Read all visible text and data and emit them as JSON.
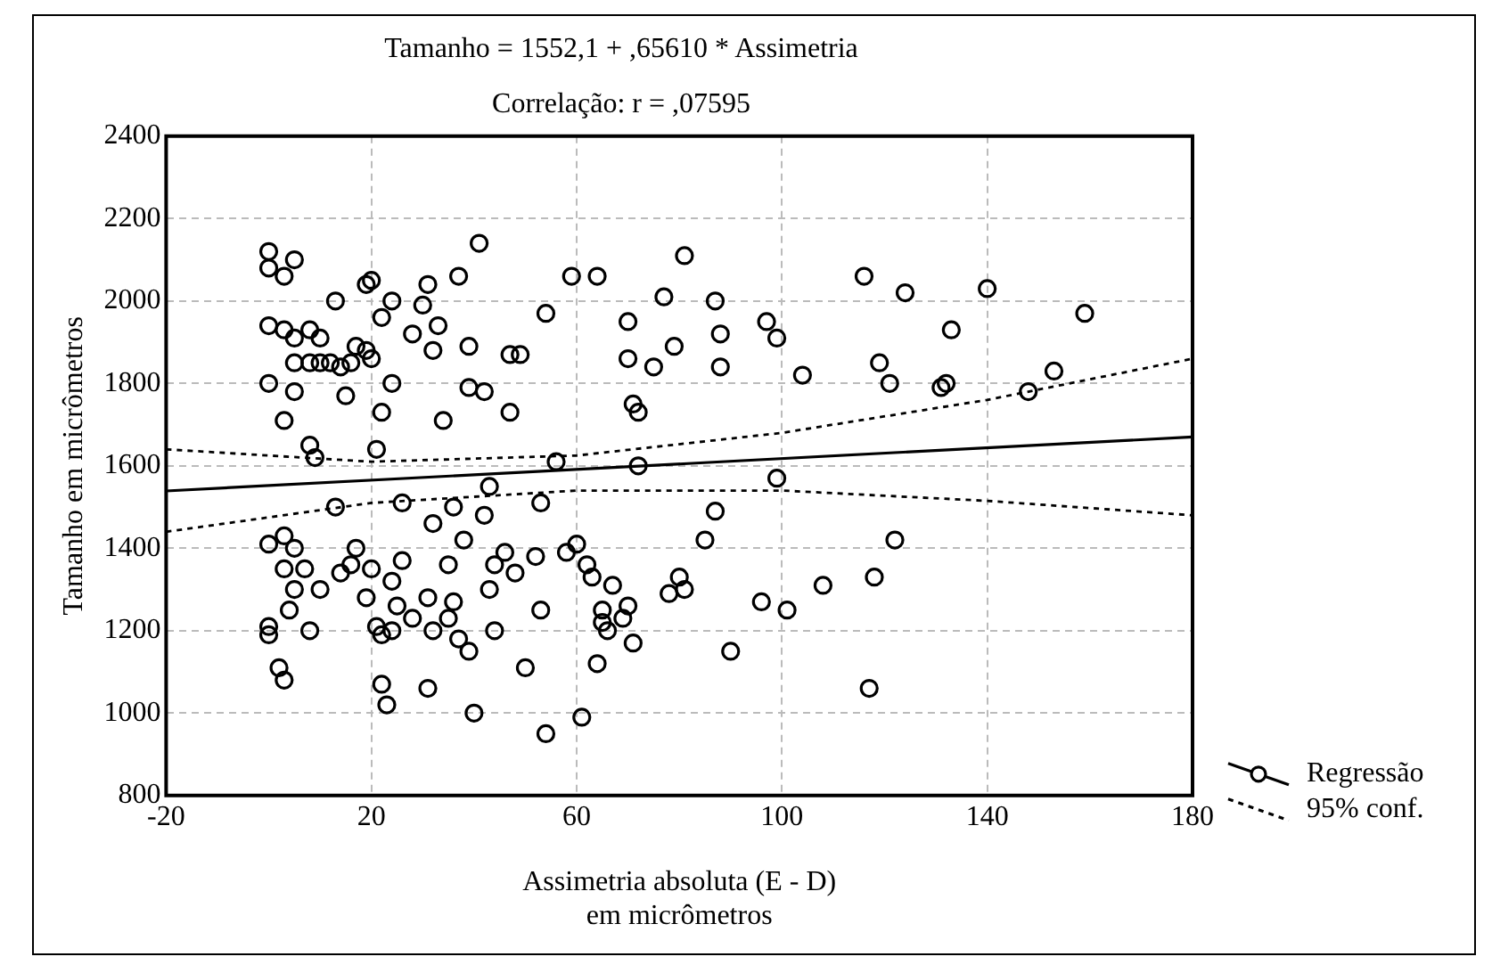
{
  "chart_data": {
    "type": "scatter",
    "title": "Tamanho = 1552,1 + ,65610 * Assimetria",
    "subtitle": "Correlação: r = ,07595",
    "xlabel": "Assimetria absoluta (E - D)\nem micrômetros",
    "ylabel": "Tamanho em micrômetros",
    "xlim": [
      -20,
      180
    ],
    "xticks": [
      -20,
      20,
      60,
      100,
      140,
      180
    ],
    "ylim": [
      800,
      2400
    ],
    "yticks": [
      800,
      1000,
      1200,
      1400,
      1600,
      1800,
      2000,
      2200,
      2400
    ],
    "grid": true,
    "legend": "right",
    "series": [
      {
        "color": "#000000",
        "marker": "circle",
        "x": [
          0,
          0,
          3,
          5,
          0,
          3,
          5,
          8,
          10,
          0,
          3,
          5,
          5,
          8,
          10,
          12,
          8,
          9,
          0,
          3,
          5,
          3,
          7,
          5,
          10,
          0,
          0,
          2,
          3,
          8,
          4,
          13,
          14,
          15,
          16,
          17,
          19,
          20,
          19,
          20,
          13,
          14,
          16,
          17,
          19,
          20,
          21,
          22,
          22,
          24,
          24,
          21,
          22,
          23,
          22,
          24,
          25,
          24,
          26,
          26,
          28,
          28,
          30,
          31,
          32,
          31,
          32,
          32,
          31,
          33,
          34,
          35,
          35,
          36,
          36,
          37,
          37,
          38,
          39,
          39,
          39,
          40,
          41,
          42,
          42,
          43,
          43,
          44,
          44,
          46,
          47,
          47,
          48,
          49,
          50,
          52,
          54,
          53,
          53,
          54,
          56,
          58,
          59,
          60,
          61,
          62,
          63,
          64,
          64,
          65,
          65,
          66,
          67,
          69,
          70,
          70,
          70,
          71,
          72,
          72,
          71,
          75,
          77,
          79,
          78,
          80,
          81,
          81,
          85,
          87,
          87,
          88,
          88,
          90,
          96,
          97,
          99,
          99,
          101,
          104,
          108,
          116,
          117,
          118,
          119,
          121,
          122,
          124,
          131,
          132,
          133,
          140,
          148,
          153,
          159
        ],
        "values": [
          2120,
          2080,
          2060,
          2100,
          1940,
          1930,
          1910,
          1930,
          1910,
          1800,
          1710,
          1780,
          1850,
          1850,
          1850,
          1850,
          1650,
          1620,
          1410,
          1430,
          1400,
          1350,
          1350,
          1300,
          1300,
          1210,
          1190,
          1110,
          1080,
          1200,
          1250,
          2000,
          1840,
          1770,
          1850,
          1890,
          2040,
          2050,
          1880,
          1860,
          1500,
          1340,
          1360,
          1400,
          1280,
          1350,
          1640,
          1730,
          1960,
          2000,
          1800,
          1210,
          1070,
          1020,
          1190,
          1200,
          1260,
          1320,
          1510,
          1370,
          1920,
          1230,
          1990,
          2040,
          1880,
          1280,
          1460,
          1200,
          1060,
          1940,
          1710,
          1360,
          1230,
          1500,
          1270,
          2060,
          1180,
          1420,
          1890,
          1150,
          1790,
          1000,
          2140,
          1780,
          1480,
          1550,
          1300,
          1200,
          1360,
          1390,
          1870,
          1730,
          1340,
          1870,
          1110,
          1380,
          1970,
          1510,
          1250,
          950,
          1610,
          1390,
          2060,
          1410,
          990,
          1360,
          1330,
          2060,
          1120,
          1220,
          1250,
          1200,
          1310,
          1230,
          1950,
          1860,
          1260,
          1750,
          1730,
          1600,
          1170,
          1840,
          2010,
          1890,
          1290,
          1330,
          1300,
          2110,
          1420,
          1490,
          2000,
          1920,
          1840,
          1150,
          1270,
          1950,
          1910,
          1570,
          1250,
          1820,
          1310,
          2060,
          1060,
          1330,
          1850,
          1800,
          1420,
          2020,
          1790,
          1800,
          1930,
          2030,
          1780,
          1830,
          1970
        ]
      },
      {
        "type": "line",
        "name": "Regressão",
        "color": "#000000",
        "marker": "none",
        "line_style": "solid",
        "x": [
          -20,
          180
        ],
        "values": [
          1539,
          1670
        ]
      },
      {
        "type": "line",
        "name": "95% conf.",
        "color": "#000000",
        "marker": "none",
        "line_style": "dotted",
        "x": [
          -20,
          20,
          60,
          100,
          140,
          180
        ],
        "values": [
          1640,
          1610,
          1625,
          1680,
          1760,
          1860
        ]
      },
      {
        "type": "line",
        "color": "#000000",
        "marker": "none",
        "line_style": "dotted",
        "x": [
          -20,
          20,
          60,
          100,
          140,
          180
        ],
        "values": [
          1440,
          1510,
          1540,
          1540,
          1515,
          1480
        ]
      }
    ]
  }
}
